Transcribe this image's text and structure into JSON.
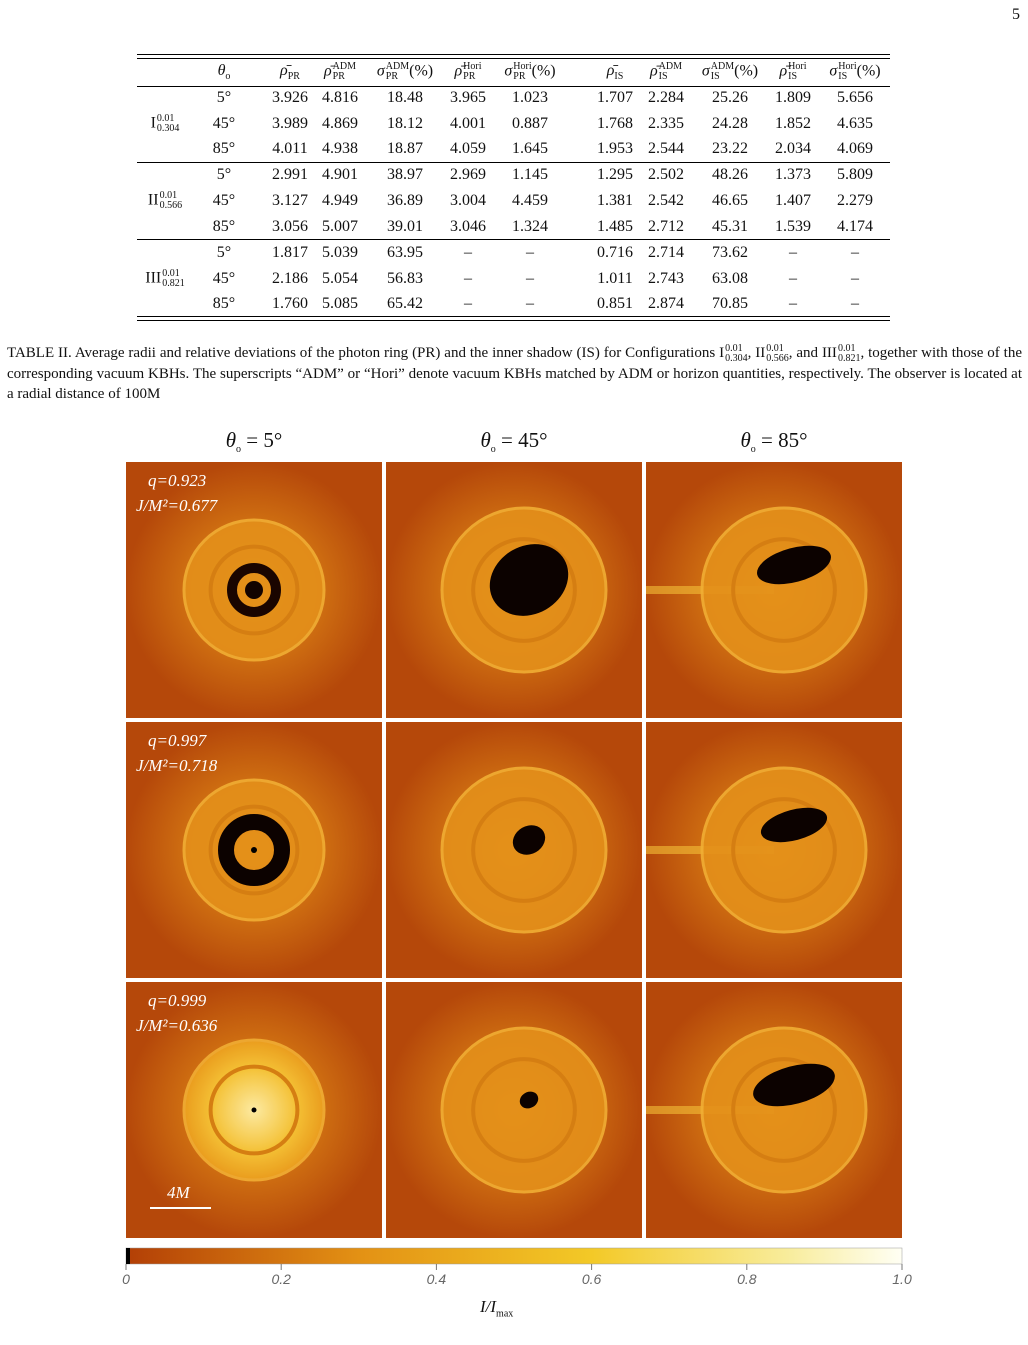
{
  "page_number": "5",
  "table": {
    "headers": [
      {
        "base": "θ",
        "sub": "o"
      },
      {
        "base": "ρ̄",
        "sub": "PR"
      },
      {
        "base": "ρ̄",
        "sub": "PR",
        "sup": "ADM"
      },
      {
        "base": "σ",
        "sub": "PR",
        "sup": "ADM",
        "suffix": "(%)"
      },
      {
        "base": "ρ̄",
        "sub": "PR",
        "sup": "Hori"
      },
      {
        "base": "σ",
        "sub": "PR",
        "sup": "Hori",
        "suffix": "(%)"
      },
      {
        "base": "ρ̄",
        "sub": "IS"
      },
      {
        "base": "ρ̄",
        "sub": "IS",
        "sup": "ADM"
      },
      {
        "base": "σ",
        "sub": "IS",
        "sup": "ADM",
        "suffix": "(%)"
      },
      {
        "base": "ρ̄",
        "sub": "IS",
        "sup": "Hori"
      },
      {
        "base": "σ",
        "sub": "IS",
        "sup": "Hori",
        "suffix": "(%)"
      }
    ],
    "groups": [
      {
        "label": {
          "base": "I",
          "sup": "0.01",
          "sub": "0.304"
        },
        "rows": [
          [
            "5°",
            "3.926",
            "4.816",
            "18.48",
            "3.965",
            "1.023",
            "1.707",
            "2.284",
            "25.26",
            "1.809",
            "5.656"
          ],
          [
            "45°",
            "3.989",
            "4.869",
            "18.12",
            "4.001",
            "0.887",
            "1.768",
            "2.335",
            "24.28",
            "1.852",
            "4.635"
          ],
          [
            "85°",
            "4.011",
            "4.938",
            "18.87",
            "4.059",
            "1.645",
            "1.953",
            "2.544",
            "23.22",
            "2.034",
            "4.069"
          ]
        ]
      },
      {
        "label": {
          "base": "II",
          "sup": "0.01",
          "sub": "0.566"
        },
        "rows": [
          [
            "5°",
            "2.991",
            "4.901",
            "38.97",
            "2.969",
            "1.145",
            "1.295",
            "2.502",
            "48.26",
            "1.373",
            "5.809"
          ],
          [
            "45°",
            "3.127",
            "4.949",
            "36.89",
            "3.004",
            "4.459",
            "1.381",
            "2.542",
            "46.65",
            "1.407",
            "2.279"
          ],
          [
            "85°",
            "3.056",
            "5.007",
            "39.01",
            "3.046",
            "1.324",
            "1.485",
            "2.712",
            "45.31",
            "1.539",
            "4.174"
          ]
        ]
      },
      {
        "label": {
          "base": "III",
          "sup": "0.01",
          "sub": "0.821"
        },
        "rows": [
          [
            "5°",
            "1.817",
            "5.039",
            "63.95",
            "–",
            "–",
            "0.716",
            "2.714",
            "73.62",
            "–",
            "–"
          ],
          [
            "45°",
            "2.186",
            "5.054",
            "56.83",
            "–",
            "–",
            "1.011",
            "2.743",
            "63.08",
            "–",
            "–"
          ],
          [
            "85°",
            "1.760",
            "5.085",
            "65.42",
            "–",
            "–",
            "0.851",
            "2.874",
            "70.85",
            "–",
            "–"
          ]
        ]
      }
    ]
  },
  "caption": [
    "TABLE II. Average radii and relative deviations of the photon ring (PR) and the inner shadow (IS) for Configurations ",
    {
      "base": "I",
      "sup": "0.01",
      "sub": "0.304"
    },
    ", ",
    {
      "base": "II",
      "sup": "0.01",
      "sub": "0.566"
    },
    ", and ",
    {
      "base": "III",
      "sup": "0.01",
      "sub": "0.821"
    },
    ", together with those of the corresponding vacuum KBHs. The superscripts “ADM” or “Hori” denote vacuum KBHs matched by ADM or horizon quantities, respectively. The observer is located at a radial distance of 100M"
  ],
  "figure": {
    "column_titles": [
      {
        "base": "θ",
        "sub": "o",
        "suffix": " = 5°"
      },
      {
        "base": "θ",
        "sub": "o",
        "suffix": " = 45°"
      },
      {
        "base": "θ",
        "sub": "o",
        "suffix": " = 85°"
      }
    ],
    "row_annotations": [
      {
        "q": "q=0.923",
        "j": "J/M²=0.677"
      },
      {
        "q": "q=0.997",
        "j": "J/M²=0.718"
      },
      {
        "q": "q=0.999",
        "j": "J/M²=0.636"
      }
    ],
    "scale_bar": "4M",
    "colorbar": {
      "lim": [
        0,
        1
      ],
      "ticks": [
        0,
        0.2,
        0.4,
        0.6,
        0.8,
        {
          "value": 1,
          "label": "1.0"
        }
      ],
      "label": {
        "base": "I/I",
        "sub": "max"
      }
    }
  }
}
